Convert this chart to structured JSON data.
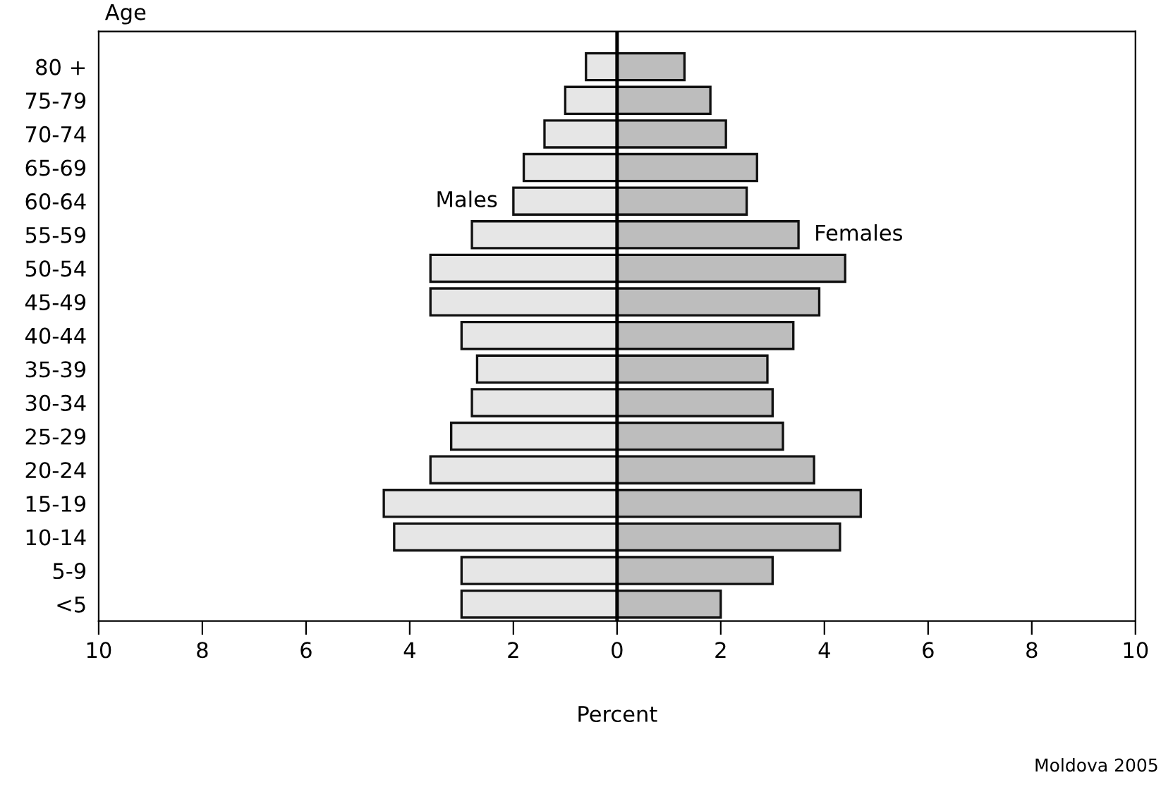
{
  "chart_data": {
    "type": "bar",
    "orientation": "horizontal",
    "xlabel": "Percent",
    "ylabel": "Age",
    "categories": [
      "80 +",
      "75-79",
      "70-74",
      "65-69",
      "60-64",
      "55-59",
      "50-54",
      "45-49",
      "40-44",
      "35-39",
      "30-34",
      "25-29",
      "20-24",
      "15-19",
      "10-14",
      "5-9",
      "<5"
    ],
    "series": [
      {
        "name": "Males",
        "color": "#e6e6e6",
        "values": [
          -0.6,
          -1.0,
          -1.4,
          -1.8,
          -2.0,
          -2.8,
          -3.6,
          -3.6,
          -3.0,
          -2.7,
          -2.8,
          -3.2,
          -3.6,
          -4.5,
          -4.3,
          -3.0,
          -3.0
        ]
      },
      {
        "name": "Females",
        "color": "#bdbdbd",
        "values": [
          1.3,
          1.8,
          2.1,
          2.7,
          2.5,
          3.5,
          4.4,
          3.9,
          3.4,
          2.9,
          3.0,
          3.2,
          3.8,
          4.7,
          4.3,
          3.0,
          2.0
        ]
      }
    ],
    "xlim": [
      -10,
      10
    ],
    "xticks": [
      {
        "value": -10,
        "label": "10"
      },
      {
        "value": -8,
        "label": "8"
      },
      {
        "value": -6,
        "label": "6"
      },
      {
        "value": -4,
        "label": "4"
      },
      {
        "value": -2,
        "label": "2"
      },
      0,
      2,
      4,
      6,
      8,
      10
    ],
    "ref_lines": [
      {
        "axis": "x",
        "value": 0,
        "color": "#000000"
      }
    ],
    "annotations": [
      "Moldova 2005"
    ],
    "stacked": true,
    "grid": false
  }
}
